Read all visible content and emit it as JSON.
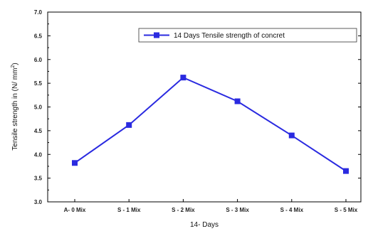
{
  "chart_data": {
    "type": "line",
    "categories": [
      "A- 0 Mix",
      "S - 1 Mix",
      "S - 2 Mix",
      "S - 3 Mix",
      "S - 4 Mix",
      "S - 5 Mix"
    ],
    "series": [
      {
        "name": "14 Days Tensile strength of concret",
        "values": [
          3.82,
          4.62,
          5.62,
          5.12,
          4.4,
          3.65
        ],
        "color": "#2a2ae0"
      }
    ],
    "xlabel": "14- Days",
    "ylabel": "Tensile strength in (N/ mm",
    "ylabel_superscript": "2",
    "ylabel_suffix": ")",
    "ylim": [
      3.0,
      7.0
    ],
    "yticks": [
      "3.0",
      "3.5",
      "4.0",
      "4.5",
      "5.0",
      "5.5",
      "6.0",
      "6.5",
      "7.0"
    ],
    "grid": false,
    "legend_position": "top-right",
    "marker": "square"
  }
}
